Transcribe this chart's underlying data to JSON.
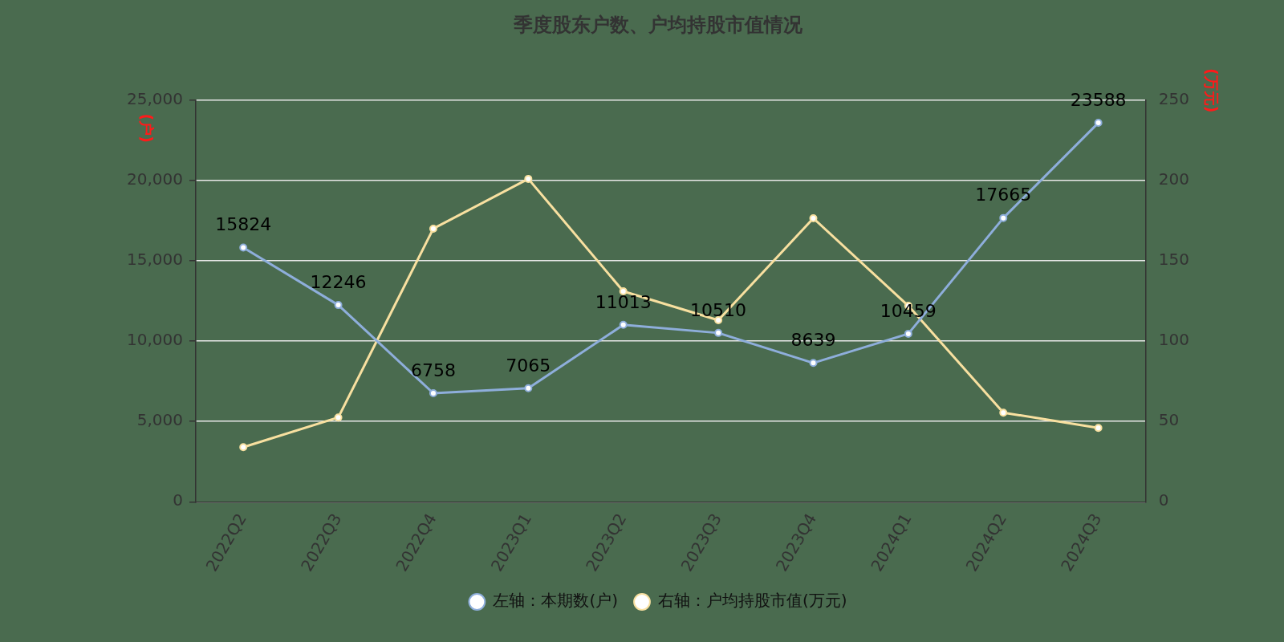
{
  "chart_data": {
    "type": "line",
    "title": "季度股东户数、户均持股市值情况",
    "ylabel": "(户)",
    "y2label": "(万元)",
    "categories": [
      "2022Q2",
      "2022Q3",
      "2022Q4",
      "2023Q1",
      "2023Q2",
      "2023Q3",
      "2023Q4",
      "2024Q1",
      "2024Q2",
      "2024Q3"
    ],
    "series": [
      {
        "name": "左轴：本期数(户)",
        "color": "#8eaedb",
        "values": [
          15824,
          12246,
          6758,
          7065,
          11013,
          10510,
          8639,
          10459,
          17665,
          23588
        ],
        "value_labels": [
          "15824",
          "12246",
          "6758",
          "7065",
          "11013",
          "10510",
          "8639",
          "10459",
          "17665",
          "23588"
        ]
      },
      {
        "name": "右轴：户均持股市值(万元)",
        "color": "#f8e0a0",
        "axis": "y2",
        "values": [
          34,
          52.5,
          170,
          201,
          131,
          113,
          176.5,
          122,
          55.5,
          46
        ]
      }
    ],
    "ylim": [
      0,
      25000
    ],
    "yticks": [
      {
        "value": 0,
        "label": "0"
      },
      {
        "value": 5000,
        "label": "5,000"
      },
      {
        "value": 10000,
        "label": "10,000"
      },
      {
        "value": 15000,
        "label": "15,000"
      },
      {
        "value": 20000,
        "label": "20,000"
      },
      {
        "value": 25000,
        "label": "25,000"
      }
    ],
    "y2lim": [
      0,
      250
    ],
    "y2ticks": [
      0,
      50,
      100,
      150,
      200,
      250
    ],
    "grid": "y",
    "legend": "bottom",
    "marker": "circle",
    "line_style": "solid"
  }
}
